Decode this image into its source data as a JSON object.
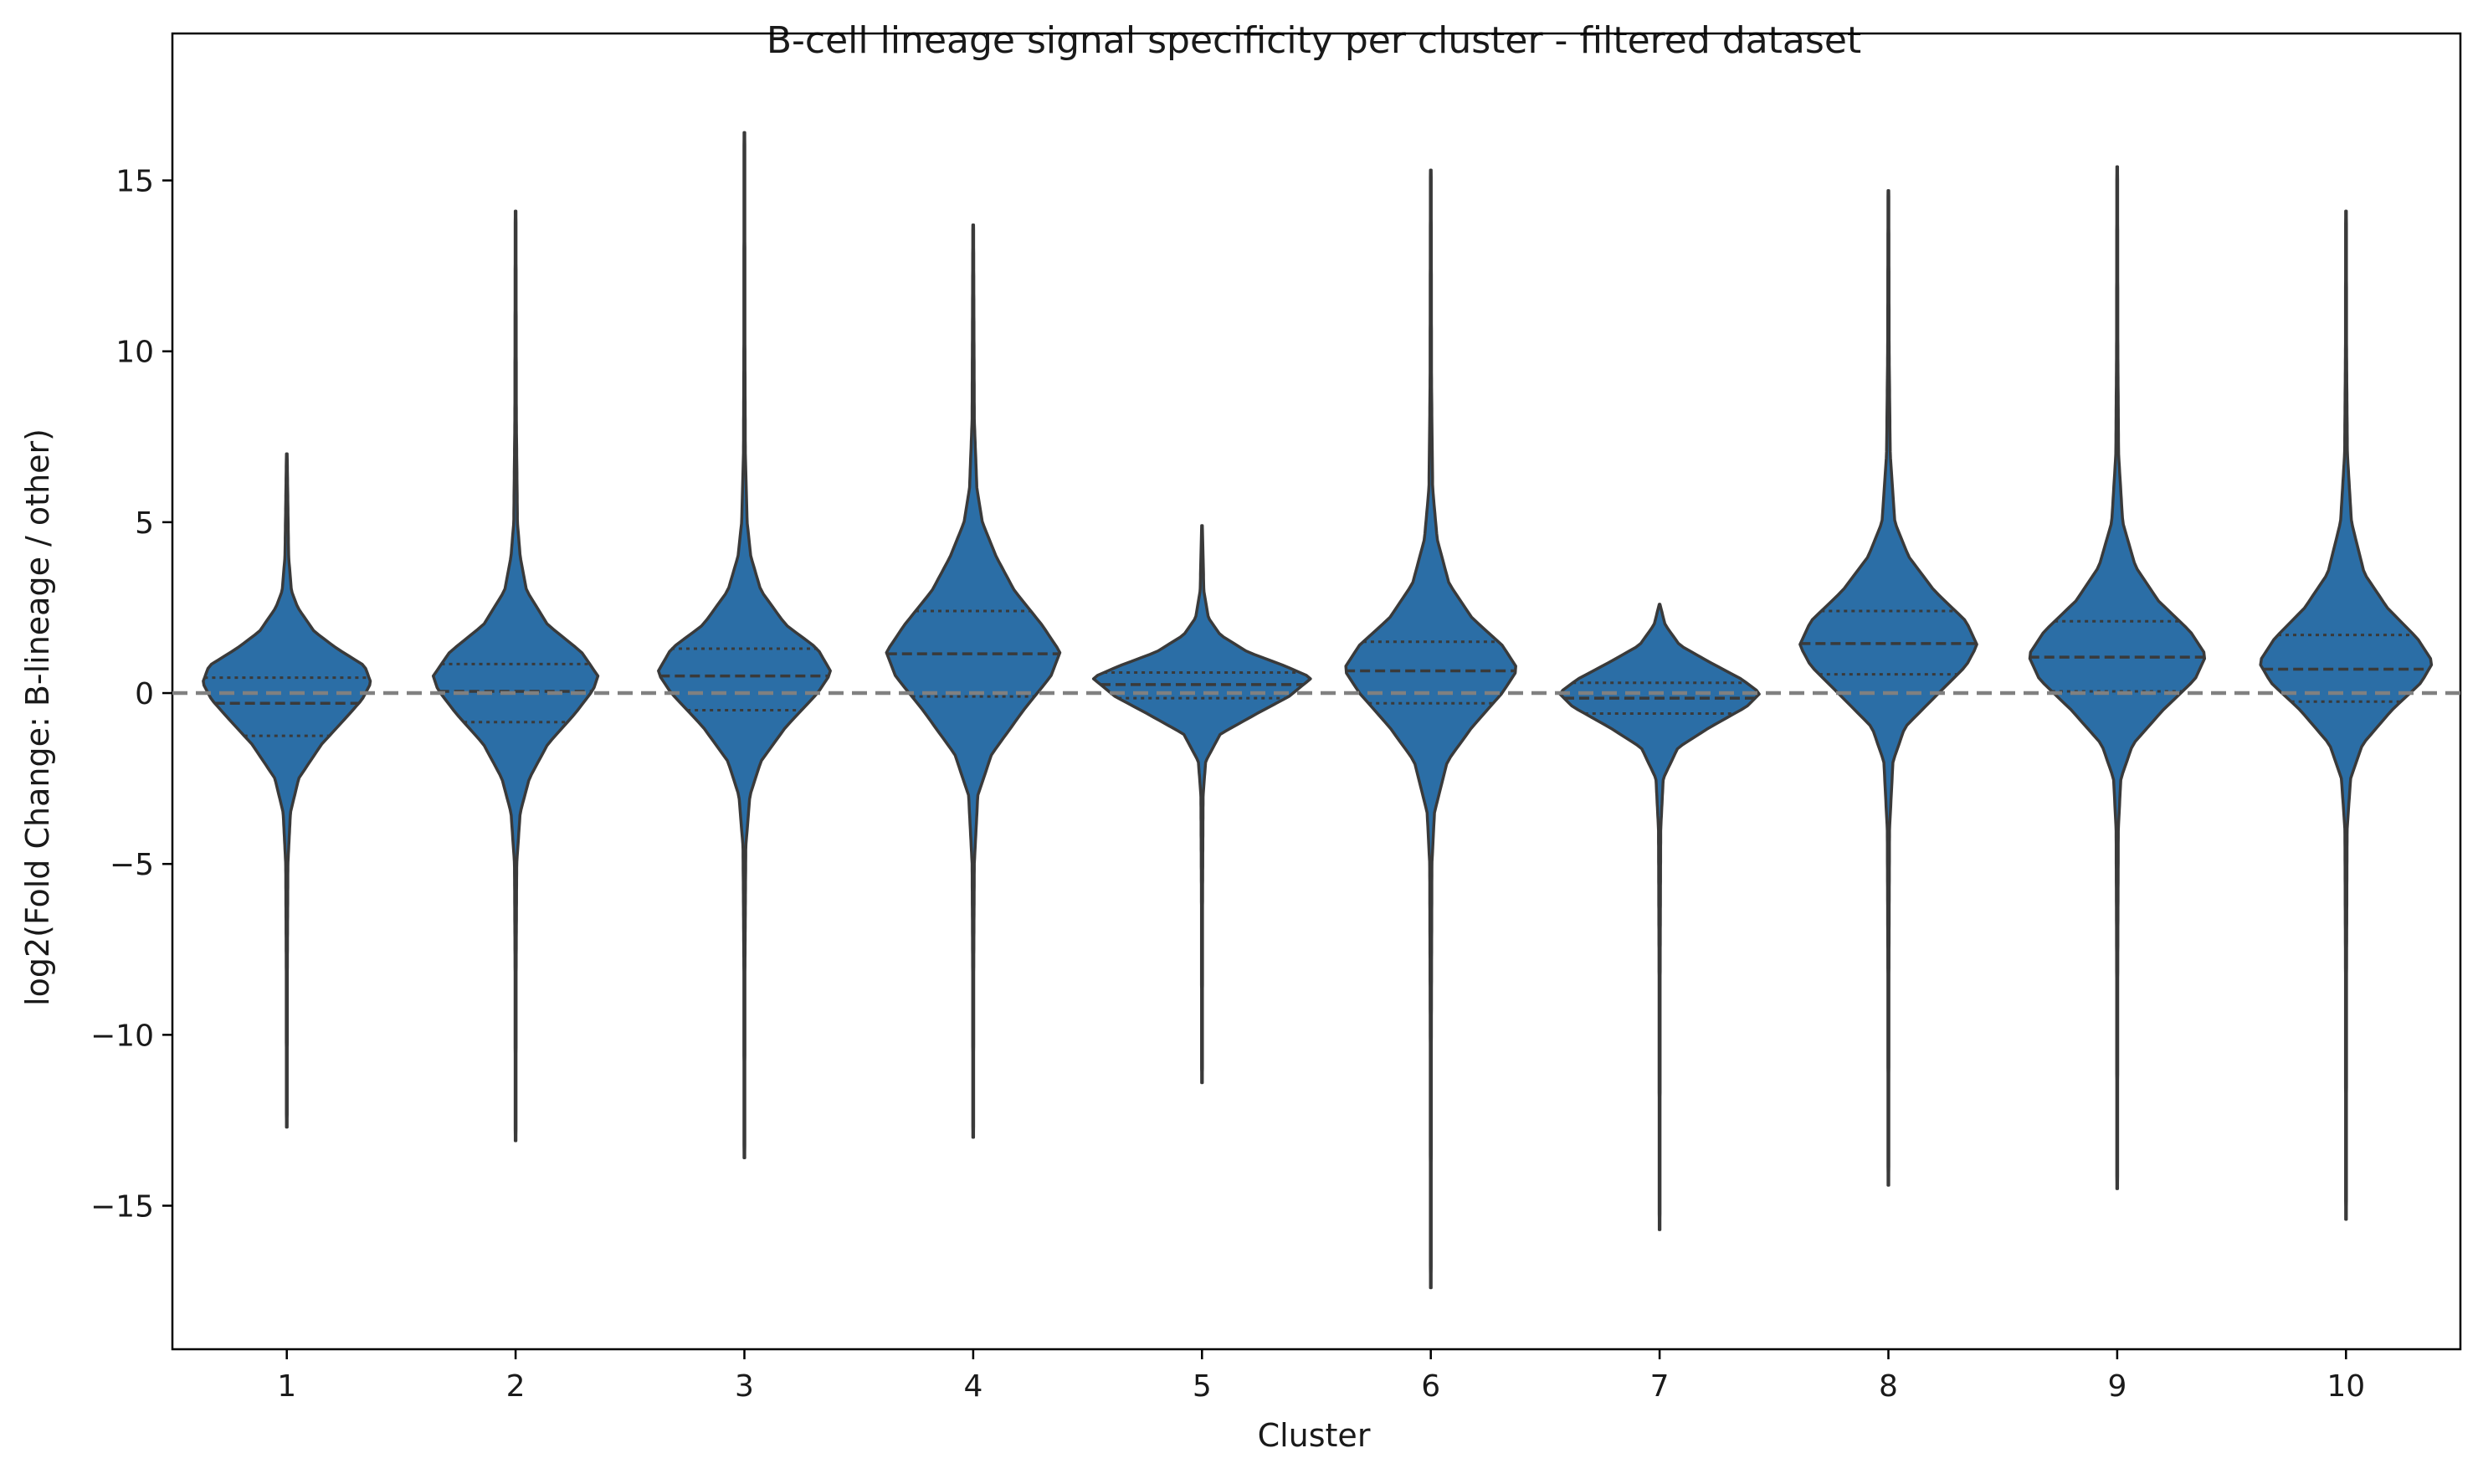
{
  "chart_data": {
    "type": "violin",
    "title": "B-cell lineage signal specificity per cluster - filtered dataset",
    "xlabel": "Cluster",
    "ylabel": "log2(Fold Change: B-lineage / other)",
    "ylim": [
      -19.2,
      19.3
    ],
    "yticks": [
      -15,
      -10,
      -5,
      0,
      5,
      10,
      15
    ],
    "ytick_labels": [
      "−15",
      "−10",
      "−5",
      "0",
      "5",
      "10",
      "15"
    ],
    "categories": [
      "1",
      "2",
      "3",
      "4",
      "5",
      "6",
      "7",
      "8",
      "9",
      "10"
    ],
    "reference_line": {
      "y": 0,
      "style": "dashed",
      "color": "#808080"
    },
    "colors": {
      "fill": "#2b6ea6",
      "edge": "#3a3a3a",
      "axis": "#000000"
    },
    "violins": [
      {
        "cluster": "1",
        "min": -12.7,
        "max": 7.0,
        "q1": -1.25,
        "median": -0.3,
        "q3": 0.45,
        "mode": 0.4,
        "profile": [
          [
            -12.7,
            0.004
          ],
          [
            -8,
            0.006
          ],
          [
            -5,
            0.012
          ],
          [
            -3.5,
            0.04
          ],
          [
            -2.5,
            0.13
          ],
          [
            -1.5,
            0.38
          ],
          [
            -0.8,
            0.62
          ],
          [
            -0.2,
            0.82
          ],
          [
            0.3,
            0.92
          ],
          [
            0.8,
            0.85
          ],
          [
            1.3,
            0.55
          ],
          [
            1.8,
            0.3
          ],
          [
            2.5,
            0.12
          ],
          [
            3,
            0.05
          ],
          [
            4,
            0.02
          ],
          [
            7.0,
            0.004
          ]
        ]
      },
      {
        "cluster": "2",
        "min": -13.1,
        "max": 14.1,
        "q1": -0.85,
        "median": 0.05,
        "q3": 0.85,
        "mode": 0.4,
        "profile": [
          [
            -13.1,
            0.004
          ],
          [
            -8,
            0.006
          ],
          [
            -5,
            0.012
          ],
          [
            -3.5,
            0.05
          ],
          [
            -2.5,
            0.15
          ],
          [
            -1.5,
            0.35
          ],
          [
            -0.6,
            0.65
          ],
          [
            0.1,
            0.85
          ],
          [
            0.5,
            0.9
          ],
          [
            1.2,
            0.72
          ],
          [
            2,
            0.35
          ],
          [
            3,
            0.12
          ],
          [
            4,
            0.05
          ],
          [
            5,
            0.02
          ],
          [
            8,
            0.008
          ],
          [
            14.1,
            0.004
          ]
        ]
      },
      {
        "cluster": "3",
        "min": -13.6,
        "max": 16.4,
        "q1": -0.5,
        "median": 0.5,
        "q3": 1.3,
        "mode": 0.6,
        "profile": [
          [
            -13.6,
            0.004
          ],
          [
            -8,
            0.006
          ],
          [
            -4.5,
            0.015
          ],
          [
            -3,
            0.06
          ],
          [
            -2,
            0.18
          ],
          [
            -1,
            0.45
          ],
          [
            0,
            0.8
          ],
          [
            0.6,
            0.95
          ],
          [
            1.3,
            0.8
          ],
          [
            2,
            0.45
          ],
          [
            3,
            0.18
          ],
          [
            4,
            0.07
          ],
          [
            5,
            0.03
          ],
          [
            7,
            0.01
          ],
          [
            10,
            0.006
          ],
          [
            16.4,
            0.004
          ]
        ]
      },
      {
        "cluster": "4",
        "min": -13.0,
        "max": 13.7,
        "q1": -0.1,
        "median": 1.15,
        "q3": 2.4,
        "mode": 1.1,
        "profile": [
          [
            -13,
            0.004
          ],
          [
            -8,
            0.006
          ],
          [
            -5,
            0.012
          ],
          [
            -3,
            0.05
          ],
          [
            -1.8,
            0.2
          ],
          [
            -0.5,
            0.55
          ],
          [
            0.5,
            0.85
          ],
          [
            1.2,
            0.95
          ],
          [
            2,
            0.75
          ],
          [
            3,
            0.45
          ],
          [
            4,
            0.25
          ],
          [
            5,
            0.1
          ],
          [
            6,
            0.04
          ],
          [
            8,
            0.012
          ],
          [
            13.7,
            0.004
          ]
        ]
      },
      {
        "cluster": "5",
        "min": -11.4,
        "max": 4.9,
        "q1": -0.15,
        "median": 0.25,
        "q3": 0.6,
        "mode": 0.45,
        "profile": [
          [
            -11.4,
            0.004
          ],
          [
            -6,
            0.006
          ],
          [
            -3,
            0.012
          ],
          [
            -2,
            0.04
          ],
          [
            -1.2,
            0.2
          ],
          [
            -0.6,
            0.6
          ],
          [
            -0.1,
            0.95
          ],
          [
            0.45,
            1.2
          ],
          [
            0.8,
            0.9
          ],
          [
            1.2,
            0.5
          ],
          [
            1.7,
            0.2
          ],
          [
            2.2,
            0.07
          ],
          [
            3,
            0.02
          ],
          [
            4.9,
            0.004
          ]
        ]
      },
      {
        "cluster": "6",
        "min": -17.4,
        "max": 15.3,
        "q1": -0.3,
        "median": 0.65,
        "q3": 1.5,
        "mode": 0.7,
        "profile": [
          [
            -17.4,
            0.004
          ],
          [
            -10,
            0.006
          ],
          [
            -5,
            0.012
          ],
          [
            -3.5,
            0.04
          ],
          [
            -2,
            0.18
          ],
          [
            -1,
            0.45
          ],
          [
            0,
            0.78
          ],
          [
            0.7,
            0.95
          ],
          [
            1.4,
            0.78
          ],
          [
            2.2,
            0.45
          ],
          [
            3.2,
            0.2
          ],
          [
            4.5,
            0.07
          ],
          [
            6,
            0.02
          ],
          [
            9,
            0.008
          ],
          [
            15.3,
            0.004
          ]
        ]
      },
      {
        "cluster": "7",
        "min": -15.7,
        "max": 2.6,
        "q1": -0.6,
        "median": -0.15,
        "q3": 0.3,
        "mode": 0.0,
        "profile": [
          [
            -15.7,
            0.004
          ],
          [
            -8,
            0.006
          ],
          [
            -4,
            0.012
          ],
          [
            -2.5,
            0.04
          ],
          [
            -1.6,
            0.2
          ],
          [
            -1,
            0.55
          ],
          [
            -0.4,
            0.95
          ],
          [
            0,
            1.1
          ],
          [
            0.4,
            0.9
          ],
          [
            0.9,
            0.55
          ],
          [
            1.4,
            0.22
          ],
          [
            2,
            0.06
          ],
          [
            2.6,
            0.004
          ]
        ]
      },
      {
        "cluster": "8",
        "min": -14.4,
        "max": 14.7,
        "q1": 0.55,
        "median": 1.45,
        "q3": 2.4,
        "mode": 1.3,
        "profile": [
          [
            -14.4,
            0.004
          ],
          [
            -8,
            0.006
          ],
          [
            -4,
            0.012
          ],
          [
            -2,
            0.05
          ],
          [
            -1,
            0.18
          ],
          [
            0,
            0.55
          ],
          [
            0.8,
            0.85
          ],
          [
            1.4,
            0.97
          ],
          [
            2.1,
            0.85
          ],
          [
            3,
            0.5
          ],
          [
            4,
            0.22
          ],
          [
            5,
            0.07
          ],
          [
            7,
            0.02
          ],
          [
            10,
            0.008
          ],
          [
            14.7,
            0.004
          ]
        ]
      },
      {
        "cluster": "9",
        "min": -14.5,
        "max": 15.4,
        "q1": 0.05,
        "median": 1.05,
        "q3": 2.1,
        "mode": 1.0,
        "profile": [
          [
            -14.5,
            0.004
          ],
          [
            -8,
            0.006
          ],
          [
            -4,
            0.012
          ],
          [
            -2.5,
            0.04
          ],
          [
            -1.5,
            0.17
          ],
          [
            -0.5,
            0.5
          ],
          [
            0.4,
            0.85
          ],
          [
            1.1,
            0.97
          ],
          [
            1.8,
            0.8
          ],
          [
            2.7,
            0.45
          ],
          [
            3.7,
            0.2
          ],
          [
            5,
            0.06
          ],
          [
            7,
            0.015
          ],
          [
            10,
            0.007
          ],
          [
            15.4,
            0.004
          ]
        ]
      },
      {
        "cluster": "10",
        "min": -15.4,
        "max": 14.1,
        "q1": -0.25,
        "median": 0.7,
        "q3": 1.7,
        "mode": 0.8,
        "profile": [
          [
            -15.4,
            0.004
          ],
          [
            -8,
            0.006
          ],
          [
            -4,
            0.012
          ],
          [
            -2.5,
            0.05
          ],
          [
            -1.5,
            0.18
          ],
          [
            -0.5,
            0.5
          ],
          [
            0.3,
            0.82
          ],
          [
            0.9,
            0.95
          ],
          [
            1.6,
            0.78
          ],
          [
            2.5,
            0.45
          ],
          [
            3.5,
            0.2
          ],
          [
            5,
            0.06
          ],
          [
            7,
            0.015
          ],
          [
            10,
            0.006
          ],
          [
            14.1,
            0.004
          ]
        ]
      }
    ]
  }
}
